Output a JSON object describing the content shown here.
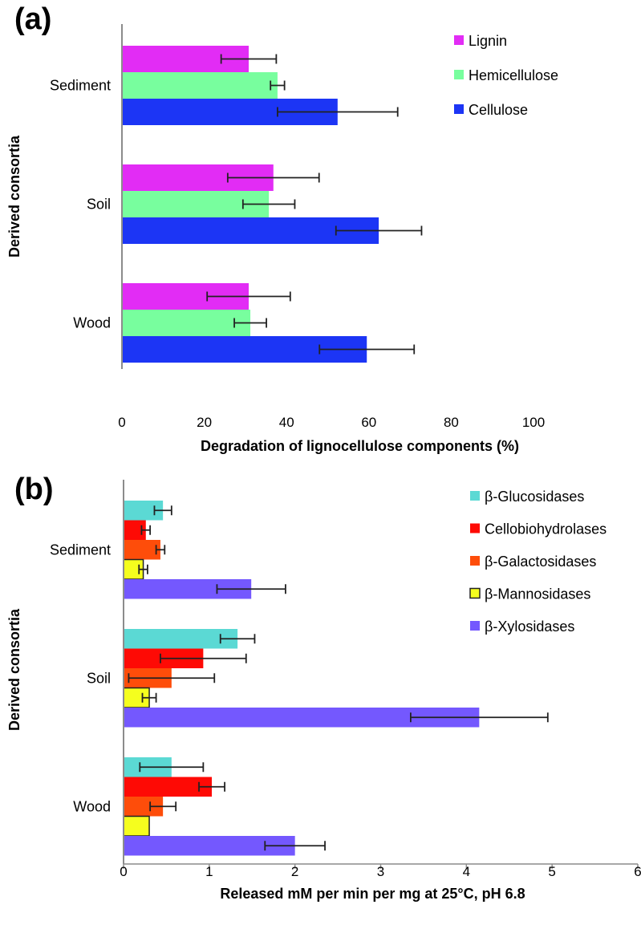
{
  "chart_data": [
    {
      "panel_label": "(a)",
      "type": "bar",
      "orientation": "horizontal",
      "categories": [
        "Sediment",
        "Soil",
        "Wood"
      ],
      "series": [
        {
          "name": "Lignin",
          "color": "#e22cf5",
          "values": [
            30.8,
            36.8,
            30.8
          ],
          "errors": [
            6.7,
            11.1,
            10.1
          ]
        },
        {
          "name": "Hemicellulose",
          "color": "#78fe9e",
          "values": [
            37.8,
            35.7,
            31.2
          ],
          "errors": [
            1.7,
            6.3,
            3.9
          ]
        },
        {
          "name": "Cellulose",
          "color": "#1c35f5",
          "values": [
            52.4,
            62.4,
            59.5
          ],
          "errors": [
            14.6,
            10.4,
            11.5
          ]
        }
      ],
      "xlabel": "Degradation of lignocellulose components (%)",
      "ylabel": "Derived consortia",
      "xlim": [
        0,
        100
      ],
      "xticks": [
        "0",
        "20",
        "40",
        "60",
        "80",
        "100"
      ],
      "grid": false,
      "legend_position": "top-right"
    },
    {
      "panel_label": "(b)",
      "type": "bar",
      "orientation": "horizontal",
      "categories": [
        "Sediment",
        "Soil",
        "Wood"
      ],
      "series": [
        {
          "name": "β-Glucosidases",
          "color": "#5bd9d4",
          "values": [
            0.46,
            1.33,
            0.56
          ],
          "errors": [
            0.1,
            0.2,
            0.37
          ]
        },
        {
          "name": "Cellobiohydrolases",
          "color": "#fe0a05",
          "values": [
            0.26,
            0.93,
            1.03
          ],
          "errors": [
            0.05,
            0.5,
            0.15
          ]
        },
        {
          "name": "β-Galactosidases",
          "color": "#fe4d0a",
          "values": [
            0.43,
            0.56,
            0.46
          ],
          "errors": [
            0.05,
            0.5,
            0.15
          ]
        },
        {
          "name": "β-Mannosidases",
          "color": "#f5fe1e",
          "values": [
            0.23,
            0.3,
            0.3
          ],
          "errors": [
            0.05,
            0.08,
            0
          ]
        },
        {
          "name": "β-Xylosidases",
          "color": "#7458fe",
          "values": [
            1.49,
            4.15,
            2.0
          ],
          "errors": [
            0.4,
            0.8,
            0.35
          ]
        }
      ],
      "xlabel": "Released mM per min per mg at 25°C, pH 6.8",
      "ylabel": "Derived consortia",
      "xlim": [
        0,
        6
      ],
      "xticks": [
        "0",
        "1",
        "2",
        "3",
        "4",
        "5",
        "6"
      ],
      "grid": false,
      "legend_position": "top-right"
    }
  ]
}
